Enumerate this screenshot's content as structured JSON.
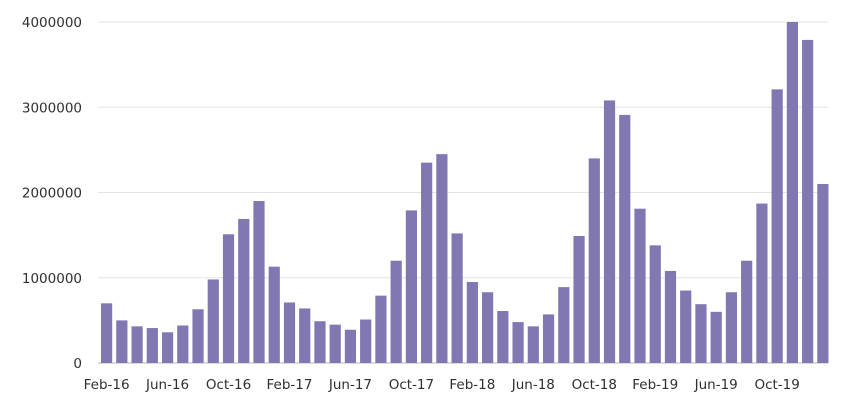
{
  "chart_data": {
    "type": "bar",
    "title": "",
    "xlabel": "",
    "ylabel": "",
    "ylim": [
      0,
      4000000
    ],
    "yticks": [
      0,
      1000000,
      2000000,
      3000000,
      4000000
    ],
    "ytick_labels": [
      "0",
      "1000000",
      "2000000",
      "3000000",
      "4000000"
    ],
    "grid": "horizontal",
    "bar_color": "#8178b2",
    "categories": [
      "Feb-16",
      "Mar-16",
      "Apr-16",
      "May-16",
      "Jun-16",
      "Jul-16",
      "Aug-16",
      "Sep-16",
      "Oct-16",
      "Nov-16",
      "Dec-16",
      "Jan-17",
      "Feb-17",
      "Mar-17",
      "Apr-17",
      "May-17",
      "Jun-17",
      "Jul-17",
      "Aug-17",
      "Sep-17",
      "Oct-17",
      "Nov-17",
      "Dec-17",
      "Jan-18",
      "Feb-18",
      "Mar-18",
      "Apr-18",
      "May-18",
      "Jun-18",
      "Jul-18",
      "Aug-18",
      "Sep-18",
      "Oct-18",
      "Nov-18",
      "Dec-18",
      "Jan-19",
      "Feb-19",
      "Mar-19",
      "Apr-19",
      "May-19",
      "Jun-19",
      "Jul-19",
      "Aug-19",
      "Sep-19",
      "Oct-19",
      "Nov-19",
      "Dec-19",
      "Jan-20"
    ],
    "x_tick_labels": [
      {
        "index": 0,
        "label": "Feb-16"
      },
      {
        "index": 4,
        "label": "Jun-16"
      },
      {
        "index": 8,
        "label": "Oct-16"
      },
      {
        "index": 12,
        "label": "Feb-17"
      },
      {
        "index": 16,
        "label": "Jun-17"
      },
      {
        "index": 20,
        "label": "Oct-17"
      },
      {
        "index": 24,
        "label": "Feb-18"
      },
      {
        "index": 28,
        "label": "Jun-18"
      },
      {
        "index": 32,
        "label": "Oct-18"
      },
      {
        "index": 36,
        "label": "Feb-19"
      },
      {
        "index": 40,
        "label": "Jun-19"
      },
      {
        "index": 44,
        "label": "Oct-19"
      }
    ],
    "values": [
      700000,
      500000,
      430000,
      410000,
      360000,
      440000,
      630000,
      980000,
      1510000,
      1690000,
      1900000,
      1130000,
      710000,
      640000,
      490000,
      450000,
      390000,
      510000,
      790000,
      1200000,
      1790000,
      2350000,
      2450000,
      1520000,
      950000,
      830000,
      610000,
      480000,
      430000,
      570000,
      890000,
      1490000,
      2400000,
      3080000,
      2910000,
      1810000,
      1380000,
      1080000,
      850000,
      690000,
      600000,
      830000,
      1200000,
      1870000,
      3210000,
      4000000,
      3790000,
      2100000
    ]
  }
}
